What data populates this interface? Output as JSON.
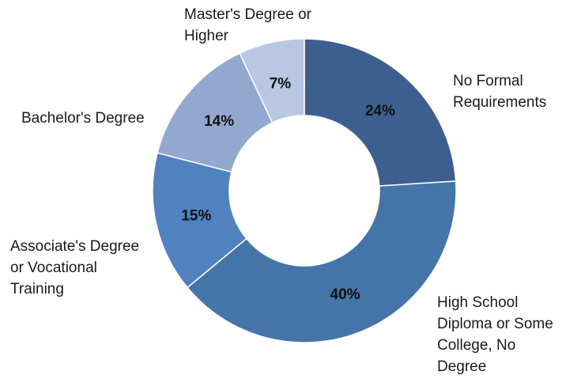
{
  "chart_data": {
    "type": "pie",
    "subtype": "donut",
    "title": "",
    "legend": "none",
    "categories": [
      "No Formal Requirements",
      "High School Diploma or Some College, No Degree",
      "Associate's Degree or Vocational Training",
      "Bachelor's Degree",
      "Master's Degree or Higher"
    ],
    "category_label_lines": [
      [
        "No Formal",
        "Requirements"
      ],
      [
        "High School",
        "Diploma or Some",
        "College, No",
        "Degree"
      ],
      [
        "Associate's Degree",
        "or Vocational",
        "Training"
      ],
      [
        "Bachelor's Degree"
      ],
      [
        "Master's Degree or",
        "Higher"
      ]
    ],
    "values": [
      24,
      40,
      15,
      14,
      7
    ],
    "data_labels": [
      "24%",
      "40%",
      "15%",
      "14%",
      "7%"
    ],
    "colors": [
      "#3d5f8f",
      "#4574a8",
      "#5082c0",
      "#93a8cf",
      "#b8c7e2"
    ]
  }
}
